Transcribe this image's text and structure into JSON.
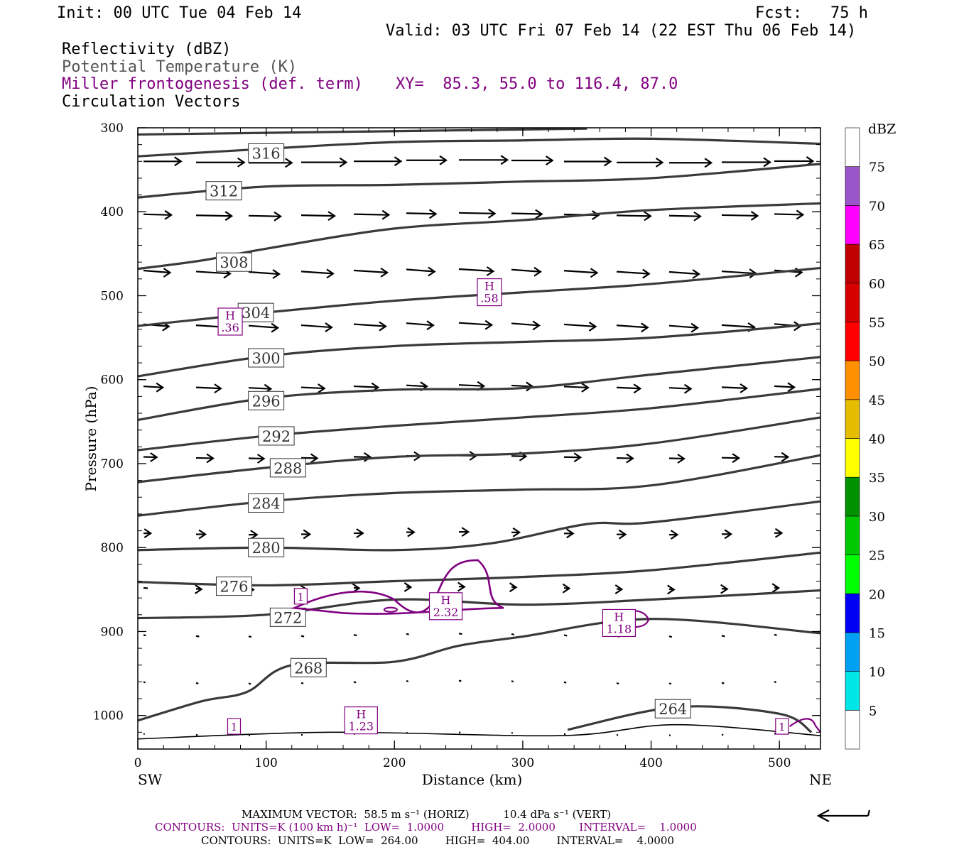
{
  "header": {
    "init": "Init: 00 UTC Tue 04 Feb 14",
    "fcst": "Fcst:   75 h",
    "valid": "Valid: 03 UTC Fri 07 Feb 14 (22 EST Thu 06 Feb 14)",
    "fields": [
      {
        "label": "Reflectivity (dBZ)",
        "color": "#000000"
      },
      {
        "label": "Potential Temperature (K)",
        "color": "#555555"
      },
      {
        "label": "Miller frontogenesis (def. term)",
        "color": "#800080"
      },
      {
        "label": "Circulation Vectors",
        "color": "#000000"
      }
    ],
    "xy": "XY=  85.3, 55.0 to 116.4, 87.0"
  },
  "chart_data": {
    "type": "line",
    "xlabel": "Distance (km)",
    "ylabel": "Pressure (hPa)",
    "x_ticks": [
      0,
      100,
      200,
      300,
      400,
      500
    ],
    "y_ticks": [
      300,
      400,
      500,
      600,
      700,
      800,
      900,
      1000
    ],
    "xlim": [
      0,
      532
    ],
    "ylim": [
      300,
      1040
    ],
    "y_inverted": true,
    "left_end_label": "SW",
    "right_end_label": "NE",
    "theta_contours": [
      {
        "value": 316,
        "points": [
          [
            0,
            334
          ],
          [
            100,
            325
          ],
          [
            200,
            317
          ],
          [
            300,
            315
          ],
          [
            400,
            313
          ],
          [
            532,
            319
          ]
        ],
        "label_at": [
          100,
          330
        ]
      },
      {
        "value": 312,
        "points": [
          [
            0,
            383
          ],
          [
            100,
            370
          ],
          [
            200,
            368
          ],
          [
            300,
            364
          ],
          [
            400,
            360
          ],
          [
            532,
            343
          ]
        ],
        "label_at": [
          67,
          375
        ]
      },
      {
        "value": 308,
        "points": [
          [
            0,
            468
          ],
          [
            50,
            458
          ],
          [
            100,
            444
          ],
          [
            200,
            420
          ],
          [
            300,
            410
          ],
          [
            400,
            398
          ],
          [
            532,
            390
          ]
        ],
        "label_at": [
          75,
          460
        ]
      },
      {
        "value": 304,
        "points": [
          [
            0,
            536
          ],
          [
            100,
            520
          ],
          [
            200,
            506
          ],
          [
            300,
            496
          ],
          [
            400,
            486
          ],
          [
            532,
            467
          ]
        ],
        "label_at": [
          92,
          520
        ]
      },
      {
        "value": 300,
        "points": [
          [
            0,
            596
          ],
          [
            100,
            572
          ],
          [
            200,
            560
          ],
          [
            300,
            555
          ],
          [
            400,
            550
          ],
          [
            532,
            533
          ]
        ],
        "label_at": [
          100,
          574
        ]
      },
      {
        "value": 296,
        "points": [
          [
            0,
            648
          ],
          [
            100,
            622
          ],
          [
            200,
            612
          ],
          [
            300,
            610
          ],
          [
            400,
            594
          ],
          [
            532,
            573
          ]
        ],
        "label_at": [
          100,
          625
        ]
      },
      {
        "value": 292,
        "points": [
          [
            0,
            684
          ],
          [
            100,
            667
          ],
          [
            200,
            655
          ],
          [
            300,
            645
          ],
          [
            400,
            634
          ],
          [
            532,
            611
          ]
        ],
        "label_at": [
          108,
          667
        ]
      },
      {
        "value": 288,
        "points": [
          [
            0,
            722
          ],
          [
            100,
            705
          ],
          [
            200,
            692
          ],
          [
            300,
            688
          ],
          [
            400,
            676
          ],
          [
            532,
            645
          ]
        ],
        "label_at": [
          117,
          705
        ]
      },
      {
        "value": 284,
        "points": [
          [
            0,
            762
          ],
          [
            100,
            745
          ],
          [
            200,
            735
          ],
          [
            300,
            731
          ],
          [
            400,
            726
          ],
          [
            532,
            690
          ]
        ],
        "label_at": [
          100,
          747
        ]
      },
      {
        "value": 280,
        "points": [
          [
            0,
            803
          ],
          [
            100,
            800
          ],
          [
            200,
            803
          ],
          [
            275,
            795
          ],
          [
            350,
            772
          ],
          [
            400,
            770
          ],
          [
            532,
            745
          ]
        ],
        "label_at": [
          100,
          800
        ]
      },
      {
        "value": 276,
        "points": [
          [
            0,
            841
          ],
          [
            100,
            845
          ],
          [
            200,
            840
          ],
          [
            300,
            835
          ],
          [
            400,
            827
          ],
          [
            532,
            806
          ]
        ],
        "label_at": [
          75,
          846
        ]
      },
      {
        "value": 272,
        "points": [
          [
            0,
            884
          ],
          [
            100,
            880
          ],
          [
            200,
            862
          ],
          [
            300,
            868
          ],
          [
            400,
            862
          ],
          [
            532,
            851
          ]
        ],
        "label_at": [
          117,
          883
        ]
      },
      {
        "value": 268,
        "points": [
          [
            0,
            1006
          ],
          [
            50,
            983
          ],
          [
            85,
            972
          ],
          [
            120,
            940
          ],
          [
            200,
            936
          ],
          [
            250,
            917
          ],
          [
            300,
            906
          ],
          [
            400,
            885
          ],
          [
            532,
            902
          ]
        ],
        "label_at": [
          133,
          943
        ]
      },
      {
        "value": 264,
        "points": [
          [
            335,
            1017
          ],
          [
            420,
            990
          ],
          [
            500,
            998
          ],
          [
            525,
            1020
          ]
        ],
        "label_at": [
          417,
          992
        ]
      }
    ],
    "frontogenesis": {
      "low": 1.0,
      "high": 2.0,
      "interval": 1.0,
      "units": "K (100 km h)-1",
      "maxima": [
        {
          "label": "H",
          "value": ".36",
          "x": 72,
          "p": 530
        },
        {
          "label": "H",
          "value": ".58",
          "x": 274,
          "p": 495
        },
        {
          "label": "H",
          "value": "2.32",
          "x": 240,
          "p": 869
        },
        {
          "label": "H",
          "value": "1.18",
          "x": 375,
          "p": 889
        },
        {
          "label": "H",
          "value": "1.23",
          "x": 174,
          "p": 1005
        }
      ],
      "contour_labels": [
        {
          "value": "1",
          "x": 127,
          "p": 858
        },
        {
          "value": "1",
          "x": 75,
          "p": 1013
        },
        {
          "value": "1",
          "x": 502,
          "p": 1013
        }
      ]
    },
    "circulation_vectors_note": "reference arrow at lower right",
    "colorbar": {
      "units": "dBZ",
      "labels": [
        5,
        10,
        15,
        20,
        25,
        30,
        35,
        40,
        45,
        50,
        55,
        60,
        65,
        70,
        75
      ],
      "colors": [
        "#ffffff",
        "#00e6e6",
        "#00a0f5",
        "#0000f5",
        "#00ff00",
        "#00c800",
        "#009000",
        "#ffff00",
        "#e6bc00",
        "#ff9000",
        "#ff0000",
        "#d60000",
        "#c00000",
        "#ff00ff",
        "#9955c9",
        "#ffffff"
      ]
    }
  },
  "footer": {
    "line1": "MAXIMUM VECTOR:  58.5 m s⁻¹ (HORIZ)          10.4 dPa s⁻¹ (VERT)",
    "line2": "CONTOURS:  UNITS=K (100 km h)⁻¹  LOW=  1.0000        HIGH=  2.0000       INTERVAL=    1.0000",
    "line3": "CONTOURS:  UNITS=K  LOW=  264.00        HIGH=  404.00        INTERVAL=    4.0000"
  }
}
